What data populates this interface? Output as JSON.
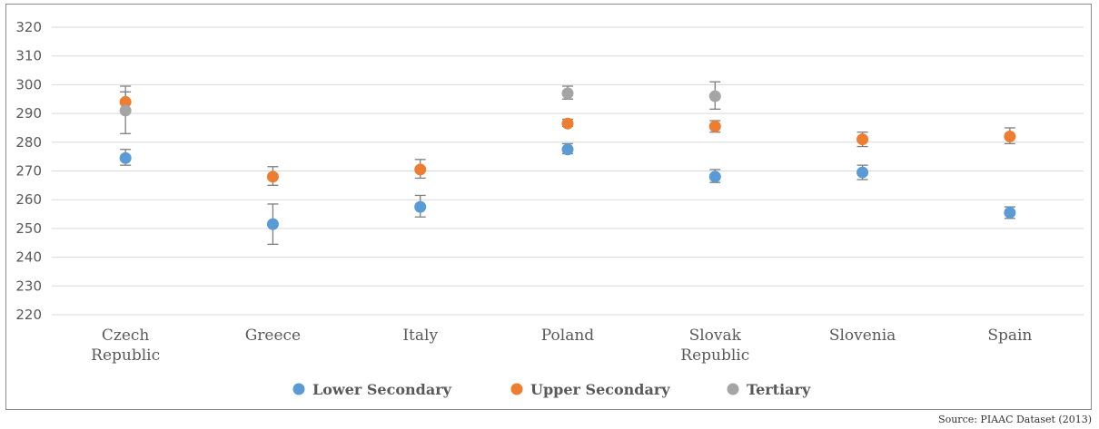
{
  "chart_data": {
    "type": "scatter",
    "title": "",
    "xlabel": "",
    "ylabel": "",
    "ylim": [
      220,
      320
    ],
    "yticks": [
      220,
      230,
      240,
      250,
      260,
      270,
      280,
      290,
      300,
      310,
      320
    ],
    "grid": true,
    "legend_position": "bottom",
    "categories": [
      [
        "Czech",
        "Republic"
      ],
      [
        "Greece"
      ],
      [
        "Italy"
      ],
      [
        "Poland"
      ],
      [
        "Slovak",
        "Republic"
      ],
      [
        "Slovenia"
      ],
      [
        "Spain"
      ]
    ],
    "series": [
      {
        "name": "Lower Secondary",
        "color": "#5b9bd5",
        "values": [
          274.5,
          251.5,
          257.5,
          277.5,
          268,
          269.5,
          255.5
        ],
        "err_low": [
          272,
          244.5,
          254,
          276,
          266,
          267,
          253.5
        ],
        "err_high": [
          277.5,
          258.5,
          261.5,
          279.5,
          270.5,
          272,
          257.5
        ]
      },
      {
        "name": "Upper Secondary",
        "color": "#ed7d31",
        "values": [
          294,
          268,
          270.5,
          286.5,
          285.5,
          281,
          282
        ],
        "err_low": [
          291,
          265,
          267.5,
          285.5,
          283.5,
          278.5,
          279.5
        ],
        "err_high": [
          297.5,
          271.5,
          274,
          288,
          287.5,
          283.5,
          285
        ]
      },
      {
        "name": "Tertiary",
        "color": "#a5a5a5",
        "values": [
          291,
          null,
          null,
          297,
          296,
          null,
          null
        ],
        "err_low": [
          283,
          null,
          null,
          295,
          291.5,
          null,
          null
        ],
        "err_high": [
          299.5,
          null,
          null,
          299.5,
          301,
          null,
          null
        ]
      }
    ]
  },
  "source_note": "Source: PIAAC Dataset (2013)"
}
